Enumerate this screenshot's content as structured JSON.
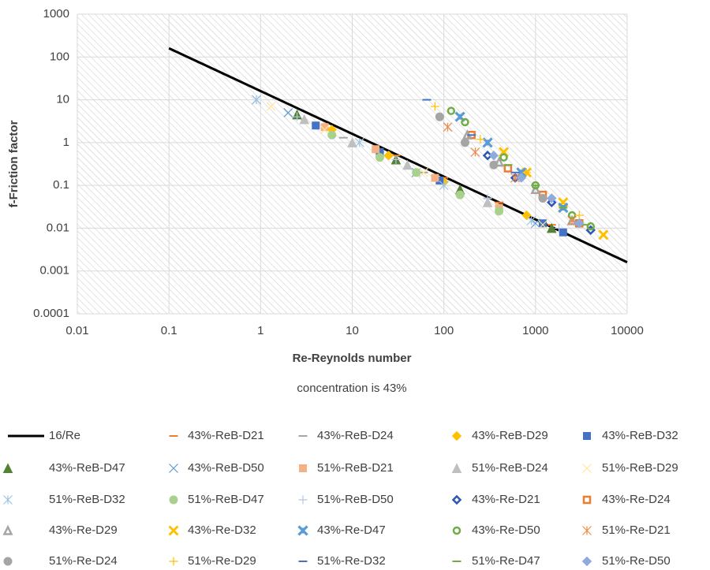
{
  "chart_data": {
    "type": "scatter",
    "title": "concentration is 43%",
    "x_label": "Re-Reynolds number",
    "y_label": "f-Friction factor",
    "xscale": "log",
    "yscale": "log",
    "grid": true,
    "xlim": [
      0.01,
      10000
    ],
    "ylim": [
      0.0001,
      1000
    ],
    "xticks": [
      0.01,
      0.1,
      1,
      10,
      100,
      1000,
      10000
    ],
    "yticks": [
      0.0001,
      0.001,
      0.01,
      0.1,
      1,
      10,
      100,
      1000
    ],
    "series": [
      {
        "name": "16/Re",
        "marker": "line",
        "color": "#000000",
        "x": [
          0.1,
          10000
        ],
        "values": [
          160,
          0.0016
        ]
      },
      {
        "name": "43%-ReB-D21",
        "marker": "dash",
        "color": "#ED7D31",
        "x": [
          30,
          100,
          400,
          1500
        ],
        "values": [
          0.5,
          0.15,
          0.04,
          0.012
        ]
      },
      {
        "name": "43%-ReB-D24",
        "marker": "dash",
        "color": "#A5A5A5",
        "x": [
          8,
          20,
          60,
          300
        ],
        "values": [
          1.3,
          0.6,
          0.2,
          0.05
        ]
      },
      {
        "name": "43%-ReB-D29",
        "marker": "diamond",
        "color": "#FFC000",
        "x": [
          6,
          25,
          100,
          800
        ],
        "values": [
          2,
          0.5,
          0.12,
          0.02
        ]
      },
      {
        "name": "43%-ReB-D32",
        "marker": "square",
        "color": "#4472C4",
        "x": [
          4,
          20,
          90,
          1200,
          2000
        ],
        "values": [
          2.5,
          0.6,
          0.13,
          0.013,
          0.008
        ]
      },
      {
        "name": "43%-ReB-D47",
        "marker": "triangle",
        "color": "#548235",
        "x": [
          2.5,
          30,
          150,
          1500
        ],
        "values": [
          4.5,
          0.4,
          0.08,
          0.01
        ]
      },
      {
        "name": "43%-ReB-D50",
        "marker": "x",
        "color": "#5B9BD5",
        "x": [
          0.9,
          2,
          50,
          1000
        ],
        "values": [
          10,
          5,
          0.2,
          0.013
        ]
      },
      {
        "name": "51%-ReB-D21",
        "marker": "square",
        "color": "#F4B183",
        "x": [
          5,
          18,
          80,
          400
        ],
        "values": [
          2.3,
          0.7,
          0.15,
          0.03
        ]
      },
      {
        "name": "51%-ReB-D24",
        "marker": "triangle",
        "color": "#BFBFBF",
        "x": [
          3,
          10,
          40,
          300
        ],
        "values": [
          3.5,
          1,
          0.3,
          0.04
        ]
      },
      {
        "name": "51%-ReB-D29",
        "marker": "x",
        "color": "#FFE699",
        "x": [
          1.3,
          5,
          60,
          1200
        ],
        "values": [
          7,
          2,
          0.2,
          0.012
        ]
      },
      {
        "name": "51%-ReB-D32",
        "marker": "star",
        "color": "#9DC3E6",
        "x": [
          0.9,
          12,
          100,
          900
        ],
        "values": [
          10,
          1,
          0.1,
          0.015
        ]
      },
      {
        "name": "51%-ReB-D47",
        "marker": "circle",
        "color": "#A9D18E",
        "x": [
          6,
          20,
          50,
          150,
          400
        ],
        "values": [
          1.5,
          0.45,
          0.2,
          0.06,
          0.025
        ]
      },
      {
        "name": "51%-ReB-D50",
        "marker": "plus",
        "color": "#B4C7E7",
        "x": [
          2.5,
          30,
          300,
          1800
        ],
        "values": [
          4,
          0.4,
          0.05,
          0.01
        ]
      },
      {
        "name": "43%-Re-D21",
        "marker": "diamond-open",
        "color": "#2F55B4",
        "x": [
          300,
          600,
          1500,
          4000
        ],
        "values": [
          0.5,
          0.15,
          0.04,
          0.009
        ]
      },
      {
        "name": "43%-Re-D24",
        "marker": "square-open",
        "color": "#ED7D31",
        "x": [
          200,
          500,
          1200,
          3000
        ],
        "values": [
          1.5,
          0.25,
          0.06,
          0.013
        ]
      },
      {
        "name": "43%-Re-D29",
        "marker": "triangle-open",
        "color": "#A5A5A5",
        "x": [
          180,
          400,
          1000,
          2500
        ],
        "values": [
          1.5,
          0.35,
          0.08,
          0.015
        ]
      },
      {
        "name": "43%-Re-D32",
        "marker": "x-bold",
        "color": "#FFC000",
        "x": [
          450,
          800,
          2000,
          5500
        ],
        "values": [
          0.6,
          0.2,
          0.04,
          0.007
        ]
      },
      {
        "name": "43%-Re-D47",
        "marker": "x-heavy",
        "color": "#5B9BD5",
        "x": [
          150,
          300,
          700,
          2000
        ],
        "values": [
          4,
          1,
          0.2,
          0.03
        ]
      },
      {
        "name": "43%-Re-D50",
        "marker": "circle-open",
        "color": "#70AD47",
        "x": [
          120,
          170,
          450,
          1000,
          2500,
          4000
        ],
        "values": [
          5.5,
          3,
          0.45,
          0.1,
          0.02,
          0.011
        ]
      },
      {
        "name": "51%-Re-D21",
        "marker": "star",
        "color": "#F08A4B",
        "x": [
          110,
          220,
          600,
          2500
        ],
        "values": [
          2.3,
          0.6,
          0.15,
          0.015
        ]
      },
      {
        "name": "51%-Re-D24",
        "marker": "circle",
        "color": "#A5A5A5",
        "x": [
          90,
          170,
          350,
          1200
        ],
        "values": [
          4,
          1,
          0.3,
          0.05
        ]
      },
      {
        "name": "51%-Re-D29",
        "marker": "plus",
        "color": "#FFC000",
        "x": [
          80,
          250,
          800,
          3000
        ],
        "values": [
          7,
          1.2,
          0.2,
          0.02
        ]
      },
      {
        "name": "51%-Re-D32",
        "marker": "dash",
        "color": "#4472C4",
        "x": [
          65,
          200,
          600,
          1500
        ],
        "values": [
          10,
          1.5,
          0.2,
          0.05
        ]
      },
      {
        "name": "51%-Re-D47",
        "marker": "dash",
        "color": "#70AD47",
        "x": [
          500,
          1000,
          2000,
          3500
        ],
        "values": [
          0.3,
          0.1,
          0.03,
          0.012
        ]
      },
      {
        "name": "51%-Re-D50",
        "marker": "diamond",
        "color": "#8FAADC",
        "x": [
          350,
          700,
          1500,
          3000
        ],
        "values": [
          0.5,
          0.15,
          0.05,
          0.013
        ]
      }
    ]
  }
}
